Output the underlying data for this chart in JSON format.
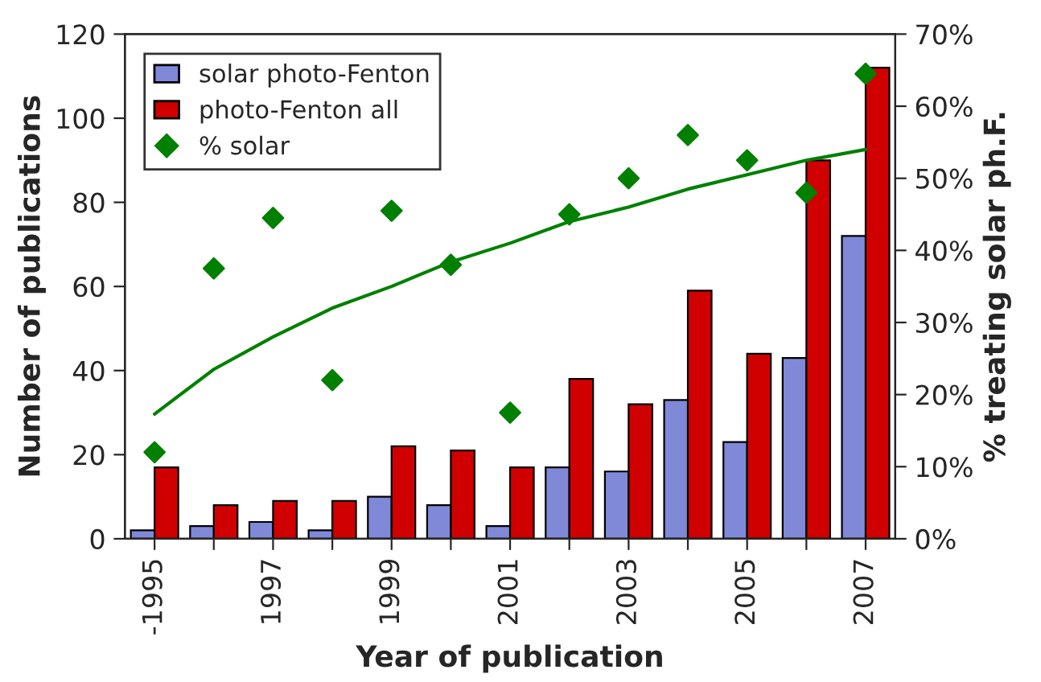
{
  "chart_data": {
    "type": "bar",
    "xlabel": "Year of publication",
    "ylabel": "Number of publications",
    "y2label": "% treating solar ph.F.",
    "categories": [
      "-1995",
      null,
      "1997",
      null,
      "1999",
      null,
      "2001",
      null,
      "2003",
      null,
      "2005",
      null,
      "2007"
    ],
    "series": [
      {
        "name": "solar photo-Fenton",
        "color": "#8088d8",
        "values": [
          2,
          3,
          4,
          2,
          10,
          8,
          3,
          17,
          16,
          33,
          23,
          43,
          72
        ]
      },
      {
        "name": "photo-Fenton all",
        "color": "#d00000",
        "values": [
          17,
          8,
          9,
          9,
          22,
          21,
          17,
          38,
          32,
          59,
          44,
          90,
          112
        ]
      },
      {
        "name": "% solar",
        "type": "scatter",
        "axis": "y2",
        "marker": "diamond",
        "color": "#008000",
        "values": [
          12,
          37.5,
          44.5,
          22,
          45.5,
          38,
          17.5,
          45,
          50,
          56,
          52.5,
          48,
          64.5
        ]
      },
      {
        "type": "line",
        "axis": "y2",
        "color": "#008000",
        "values": [
          17.3,
          23.5,
          28,
          32,
          35,
          38.4,
          41,
          44,
          46,
          48.5,
          50.5,
          52.5,
          54
        ]
      }
    ],
    "ylim": [
      0,
      120
    ],
    "yticks": [
      0,
      20,
      40,
      60,
      80,
      100,
      120
    ],
    "y2lim": [
      0,
      70
    ],
    "y2ticks": [
      {
        "value": 0,
        "label": "0%"
      },
      {
        "value": 10,
        "label": "10%"
      },
      {
        "value": 20,
        "label": "20%"
      },
      {
        "value": 30,
        "label": "30%"
      },
      {
        "value": 40,
        "label": "40%"
      },
      {
        "value": 50,
        "label": "50%"
      },
      {
        "value": 60,
        "label": "60%"
      },
      {
        "value": 70,
        "label": "70%"
      }
    ],
    "legend": "top left",
    "grid": false
  }
}
